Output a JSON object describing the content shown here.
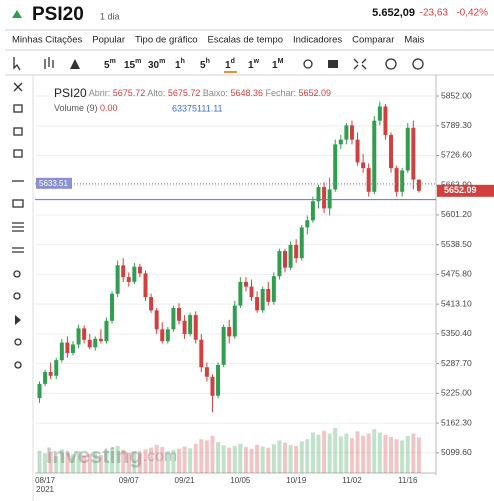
{
  "header": {
    "symbol": "PSI20",
    "period": "1 dia",
    "price": "5.652,09",
    "change": "-23,63",
    "change_pct": "-0,42%"
  },
  "menu": [
    "Minhas Citações",
    "Popular",
    "Tipo de gráfico",
    "Escalas de tempo",
    "Indicadores",
    "Comparar",
    "Mais"
  ],
  "intervals": [
    {
      "n": "5",
      "u": "m"
    },
    {
      "n": "15",
      "u": "m"
    },
    {
      "n": "30",
      "u": "m"
    },
    {
      "n": "1",
      "u": "h"
    },
    {
      "n": "5",
      "u": "h"
    },
    {
      "n": "1",
      "u": "d"
    },
    {
      "n": "1",
      "u": "w"
    },
    {
      "n": "1",
      "u": "M"
    }
  ],
  "chart_data": {
    "type": "candlestick",
    "title": "PSI20",
    "legend_labels": {
      "open": "Abrir:",
      "high": "Alto:",
      "low": "Baixo:",
      "close": "Fechar:"
    },
    "volume_legend": {
      "name": "Volume (9)",
      "value1": "0.00",
      "value2": "63375111.11"
    },
    "watermark": {
      "bold": "Investing",
      "light": ".com"
    },
    "year_label": "2021",
    "up_color": "#2f9e4f",
    "down_color": "#d23f3f",
    "reference_line": 5633.51,
    "reference_color": "#6b6fc9",
    "categories": [
      null,
      "08/17",
      null,
      null,
      null,
      null,
      null,
      null,
      null,
      null,
      null,
      null,
      null,
      null,
      null,
      null,
      "09/07",
      null,
      null,
      null,
      null,
      null,
      null,
      null,
      null,
      null,
      "09/21",
      null,
      null,
      null,
      null,
      null,
      null,
      null,
      null,
      null,
      "10/05",
      null,
      null,
      null,
      null,
      null,
      null,
      null,
      null,
      null,
      "10/19",
      null,
      null,
      null,
      null,
      null,
      null,
      null,
      null,
      null,
      "11/02",
      null,
      null,
      null,
      null,
      null,
      null,
      null,
      null,
      null,
      "11/16",
      null,
      null
    ],
    "open": [
      5215,
      5245,
      5270,
      5262,
      5295,
      5332,
      5310,
      5328,
      5362,
      5338,
      5322,
      5340,
      5335,
      5378,
      5435,
      5495,
      5470,
      5460,
      5492,
      5478,
      5428,
      5400,
      5360,
      5335,
      5360,
      5405,
      5378,
      5350,
      5390,
      5338,
      5280,
      5260,
      5220,
      5285,
      5365,
      5345,
      5410,
      5460,
      5450,
      5428,
      5400,
      5445,
      5418,
      5472,
      5525,
      5490,
      5538,
      5510,
      5575,
      5590,
      5630,
      5660,
      5615,
      5655,
      5750,
      5760,
      5790,
      5760,
      5712,
      5700,
      5650,
      5800,
      5830,
      5770,
      5700,
      5650,
      5695,
      5785,
      5675.72
    ],
    "high": [
      5250,
      5275,
      5290,
      5300,
      5340,
      5345,
      5335,
      5370,
      5368,
      5350,
      5345,
      5360,
      5385,
      5440,
      5505,
      5510,
      5480,
      5500,
      5498,
      5484,
      5435,
      5405,
      5375,
      5365,
      5410,
      5415,
      5390,
      5395,
      5398,
      5350,
      5290,
      5265,
      5290,
      5370,
      5380,
      5420,
      5470,
      5470,
      5465,
      5440,
      5450,
      5460,
      5480,
      5530,
      5530,
      5545,
      5550,
      5580,
      5600,
      5640,
      5665,
      5670,
      5680,
      5760,
      5770,
      5795,
      5800,
      5775,
      5730,
      5710,
      5810,
      5840,
      5835,
      5775,
      5705,
      5700,
      5795,
      5800,
      5675.72
    ],
    "low": [
      5205,
      5240,
      5255,
      5255,
      5290,
      5300,
      5305,
      5320,
      5330,
      5318,
      5315,
      5330,
      5330,
      5372,
      5428,
      5460,
      5450,
      5455,
      5470,
      5420,
      5395,
      5350,
      5330,
      5330,
      5355,
      5370,
      5340,
      5345,
      5330,
      5270,
      5250,
      5185,
      5215,
      5280,
      5330,
      5340,
      5405,
      5440,
      5420,
      5395,
      5395,
      5410,
      5412,
      5465,
      5480,
      5485,
      5500,
      5505,
      5560,
      5585,
      5615,
      5605,
      5600,
      5650,
      5740,
      5750,
      5750,
      5705,
      5690,
      5640,
      5645,
      5790,
      5760,
      5690,
      5640,
      5640,
      5690,
      5655,
      5648.36
    ],
    "close": [
      5245,
      5270,
      5262,
      5295,
      5332,
      5310,
      5328,
      5362,
      5338,
      5322,
      5340,
      5335,
      5378,
      5435,
      5495,
      5470,
      5460,
      5492,
      5478,
      5428,
      5400,
      5360,
      5335,
      5360,
      5405,
      5378,
      5350,
      5390,
      5338,
      5280,
      5260,
      5220,
      5285,
      5365,
      5345,
      5410,
      5460,
      5450,
      5428,
      5400,
      5445,
      5418,
      5472,
      5525,
      5490,
      5538,
      5510,
      5575,
      5590,
      5630,
      5660,
      5615,
      5655,
      5750,
      5760,
      5790,
      5760,
      5712,
      5700,
      5650,
      5800,
      5830,
      5770,
      5700,
      5650,
      5695,
      5785,
      5675.72,
      5652.09
    ],
    "volume": [
      40,
      35,
      38,
      30,
      42,
      36,
      33,
      39,
      31,
      34,
      37,
      32,
      40,
      44,
      48,
      41,
      36,
      38,
      35,
      42,
      45,
      50,
      46,
      39,
      41,
      43,
      47,
      44,
      52,
      60,
      58,
      66,
      55,
      49,
      45,
      48,
      52,
      46,
      43,
      50,
      47,
      45,
      51,
      58,
      54,
      50,
      48,
      56,
      60,
      72,
      68,
      75,
      70,
      80,
      65,
      70,
      62,
      74,
      66,
      70,
      78,
      72,
      68,
      64,
      60,
      58,
      66,
      70,
      63
    ],
    "ylim": [
      5057,
      5890
    ],
    "yticks": [
      {
        "value": 5852,
        "label": "5852.00"
      },
      {
        "value": 5789.3,
        "label": "5789.30"
      },
      {
        "value": 5726.6,
        "label": "5726.60"
      },
      {
        "value": 5663.9,
        "label": "5663.90"
      },
      {
        "value": 5601.2,
        "label": "5601.20"
      },
      {
        "value": 5538.5,
        "label": "5538.50"
      },
      {
        "value": 5475.8,
        "label": "5475.80"
      },
      {
        "value": 5413.1,
        "label": "5413.10"
      },
      {
        "value": 5350.4,
        "label": "5350.40"
      },
      {
        "value": 5287.7,
        "label": "5287.70"
      },
      {
        "value": 5225,
        "label": "5225.00"
      },
      {
        "value": 5162.3,
        "label": "5162.30"
      },
      {
        "value": 5099.6,
        "label": "5099.60"
      }
    ],
    "grid": true
  }
}
